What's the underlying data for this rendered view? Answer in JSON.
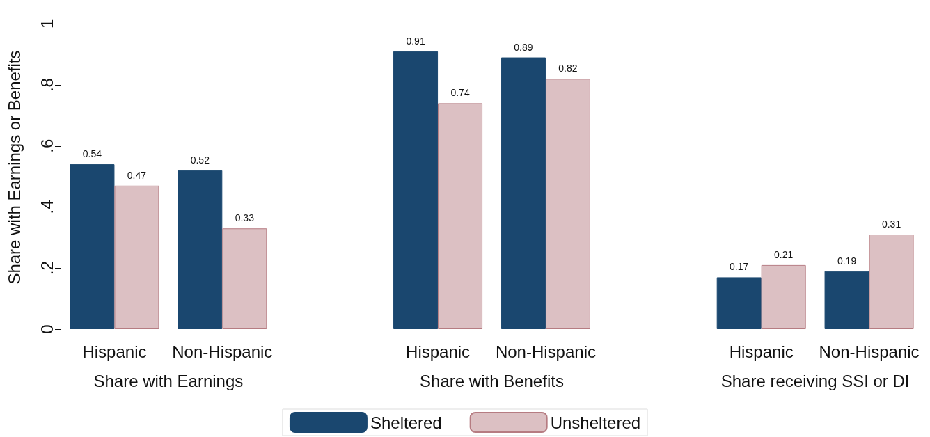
{
  "chart_data": {
    "type": "bar",
    "ylabel": "Share with Earnings or Benefits",
    "categories": [
      "Hispanic",
      "Non-Hispanic",
      null,
      "Hispanic",
      "Non-Hispanic",
      null,
      "Hispanic",
      "Non-Hispanic"
    ],
    "series": [
      {
        "name": "Sheltered",
        "color": "#1a476f",
        "values": [
          0.54,
          0.52,
          null,
          0.91,
          0.89,
          null,
          0.17,
          0.19
        ]
      },
      {
        "name": "Unsheltered",
        "color": "#dcc0c3",
        "values": [
          0.47,
          0.33,
          null,
          0.74,
          0.82,
          null,
          0.21,
          0.31
        ]
      }
    ],
    "ylim": [
      0,
      1.06
    ],
    "yticks": [
      0,
      {
        "value": 0.2,
        "label": ".2"
      },
      {
        "value": 0.4,
        "label": ".4"
      },
      {
        "value": 0.6,
        "label": ".6"
      },
      {
        "value": 0.8,
        "label": ".8"
      },
      1
    ],
    "data_labels": true,
    "grid": false,
    "legend": "bottom",
    "annotations": [
      "Share with Earnings",
      "Share with Benefits",
      "Share receiving SSI or DI"
    ]
  }
}
